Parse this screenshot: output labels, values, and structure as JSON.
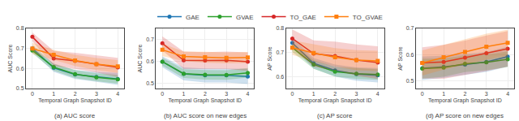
{
  "chart_data": [
    {
      "type": "line",
      "title": "(a) AUC score",
      "x_label": "Temporal Graph Snapshot ID",
      "y_label": "AUC Score",
      "x": [
        0,
        1,
        2,
        3,
        4
      ],
      "xlim": [
        -0.3,
        4.3
      ],
      "xticks": [
        0,
        1,
        2,
        3,
        4
      ],
      "ylim": [
        0.5,
        0.8
      ],
      "yticks": [
        0.5,
        0.6,
        0.7,
        0.8
      ],
      "grid": true,
      "legend": "top",
      "series": [
        {
          "name": "GAE",
          "color": "#1f77b4",
          "marker": "circle",
          "values": [
            0.7,
            0.603,
            0.57,
            0.558,
            0.548
          ],
          "std": [
            0.018,
            0.02,
            0.022,
            0.025,
            0.03
          ]
        },
        {
          "name": "GVAE",
          "color": "#2ca02c",
          "marker": "circle",
          "values": [
            0.69,
            0.607,
            0.572,
            0.556,
            0.546
          ],
          "std": [
            0.015,
            0.018,
            0.02,
            0.02,
            0.022
          ]
        },
        {
          "name": "TO_GAE",
          "color": "#d62728",
          "marker": "circle",
          "values": [
            0.758,
            0.65,
            0.638,
            0.622,
            0.605
          ],
          "std": [
            0.022,
            0.038,
            0.04,
            0.042,
            0.048
          ]
        },
        {
          "name": "TO_GVAE",
          "color": "#ff7f0e",
          "marker": "square",
          "values": [
            0.7,
            0.668,
            0.64,
            0.622,
            0.61
          ],
          "std": [
            0.028,
            0.025,
            0.028,
            0.03,
            0.032
          ]
        }
      ]
    },
    {
      "type": "line",
      "title": "(b) AUC score on new edges",
      "x_label": "Temporal Graph Snapshot ID",
      "y_label": "AUC Score",
      "x": [
        0,
        1,
        2,
        3,
        4
      ],
      "xlim": [
        -0.3,
        4.3
      ],
      "xticks": [
        0,
        1,
        2,
        3,
        4
      ],
      "ylim": [
        0.475,
        0.75
      ],
      "yticks": [
        0.5,
        0.6,
        0.7
      ],
      "grid": true,
      "legend": "top",
      "series": [
        {
          "name": "GAE",
          "color": "#1f77b4",
          "marker": "circle",
          "values": [
            0.598,
            0.542,
            0.535,
            0.535,
            0.53
          ],
          "std": [
            0.025,
            0.03,
            0.032,
            0.032,
            0.035
          ]
        },
        {
          "name": "GVAE",
          "color": "#2ca02c",
          "marker": "circle",
          "values": [
            0.598,
            0.543,
            0.538,
            0.537,
            0.547
          ],
          "std": [
            0.018,
            0.02,
            0.022,
            0.022,
            0.022
          ]
        },
        {
          "name": "TO_GAE",
          "color": "#d62728",
          "marker": "circle",
          "values": [
            0.682,
            0.604,
            0.603,
            0.604,
            0.598
          ],
          "std": [
            0.032,
            0.04,
            0.038,
            0.04,
            0.042
          ]
        },
        {
          "name": "TO_GVAE",
          "color": "#ff7f0e",
          "marker": "square",
          "values": [
            0.652,
            0.622,
            0.618,
            0.615,
            0.617
          ],
          "std": [
            0.028,
            0.022,
            0.025,
            0.025,
            0.025
          ]
        }
      ]
    },
    {
      "type": "line",
      "title": "(c) AP score",
      "x_label": "Temporal Graph Snapshot ID",
      "y_label": "AP Score",
      "x": [
        0,
        1,
        2,
        3,
        4
      ],
      "xlim": [
        -0.3,
        4.3
      ],
      "xticks": [
        0,
        1,
        2,
        3,
        4
      ],
      "ylim": [
        0.55,
        0.8
      ],
      "yticks": [
        0.6,
        0.7,
        0.8
      ],
      "grid": true,
      "legend": "top",
      "series": [
        {
          "name": "GAE",
          "color": "#1f77b4",
          "marker": "circle",
          "values": [
            0.74,
            0.655,
            0.625,
            0.61,
            0.605
          ],
          "std": [
            0.02,
            0.022,
            0.025,
            0.028,
            0.03
          ]
        },
        {
          "name": "GVAE",
          "color": "#2ca02c",
          "marker": "circle",
          "values": [
            0.72,
            0.65,
            0.62,
            0.612,
            0.608
          ],
          "std": [
            0.018,
            0.018,
            0.02,
            0.022,
            0.022
          ]
        },
        {
          "name": "TO_GAE",
          "color": "#d62728",
          "marker": "circle",
          "values": [
            0.758,
            0.695,
            0.685,
            0.668,
            0.658
          ],
          "std": [
            0.038,
            0.055,
            0.06,
            0.065,
            0.068
          ]
        },
        {
          "name": "TO_GVAE",
          "color": "#ff7f0e",
          "marker": "square",
          "values": [
            0.72,
            0.698,
            0.68,
            0.668,
            0.665
          ],
          "std": [
            0.03,
            0.035,
            0.038,
            0.042,
            0.042
          ]
        }
      ]
    },
    {
      "type": "line",
      "title": "(d) AP score on new edges",
      "x_label": "Temporal Graph Snapshot ID",
      "y_label": "AP Score",
      "x": [
        0,
        1,
        2,
        3,
        4
      ],
      "xlim": [
        -0.3,
        4.3
      ],
      "xticks": [
        0,
        1,
        2,
        3,
        4
      ],
      "ylim": [
        0.47,
        0.7
      ],
      "yticks": [
        0.5,
        0.6,
        0.7
      ],
      "grid": true,
      "legend": "top",
      "series": [
        {
          "name": "GAE",
          "color": "#1f77b4",
          "marker": "circle",
          "values": [
            0.548,
            0.553,
            0.562,
            0.572,
            0.592
          ],
          "std": [
            0.045,
            0.042,
            0.04,
            0.038,
            0.038
          ]
        },
        {
          "name": "GVAE",
          "color": "#2ca02c",
          "marker": "circle",
          "values": [
            0.546,
            0.55,
            0.565,
            0.57,
            0.582
          ],
          "std": [
            0.038,
            0.035,
            0.032,
            0.03,
            0.03
          ]
        },
        {
          "name": "TO_GAE",
          "color": "#d62728",
          "marker": "circle",
          "values": [
            0.568,
            0.572,
            0.588,
            0.605,
            0.622
          ],
          "std": [
            0.06,
            0.065,
            0.065,
            0.068,
            0.068
          ]
        },
        {
          "name": "TO_GVAE",
          "color": "#ff7f0e",
          "marker": "square",
          "values": [
            0.568,
            0.59,
            0.61,
            0.63,
            0.645
          ],
          "std": [
            0.048,
            0.048,
            0.048,
            0.05,
            0.05
          ]
        }
      ]
    }
  ]
}
